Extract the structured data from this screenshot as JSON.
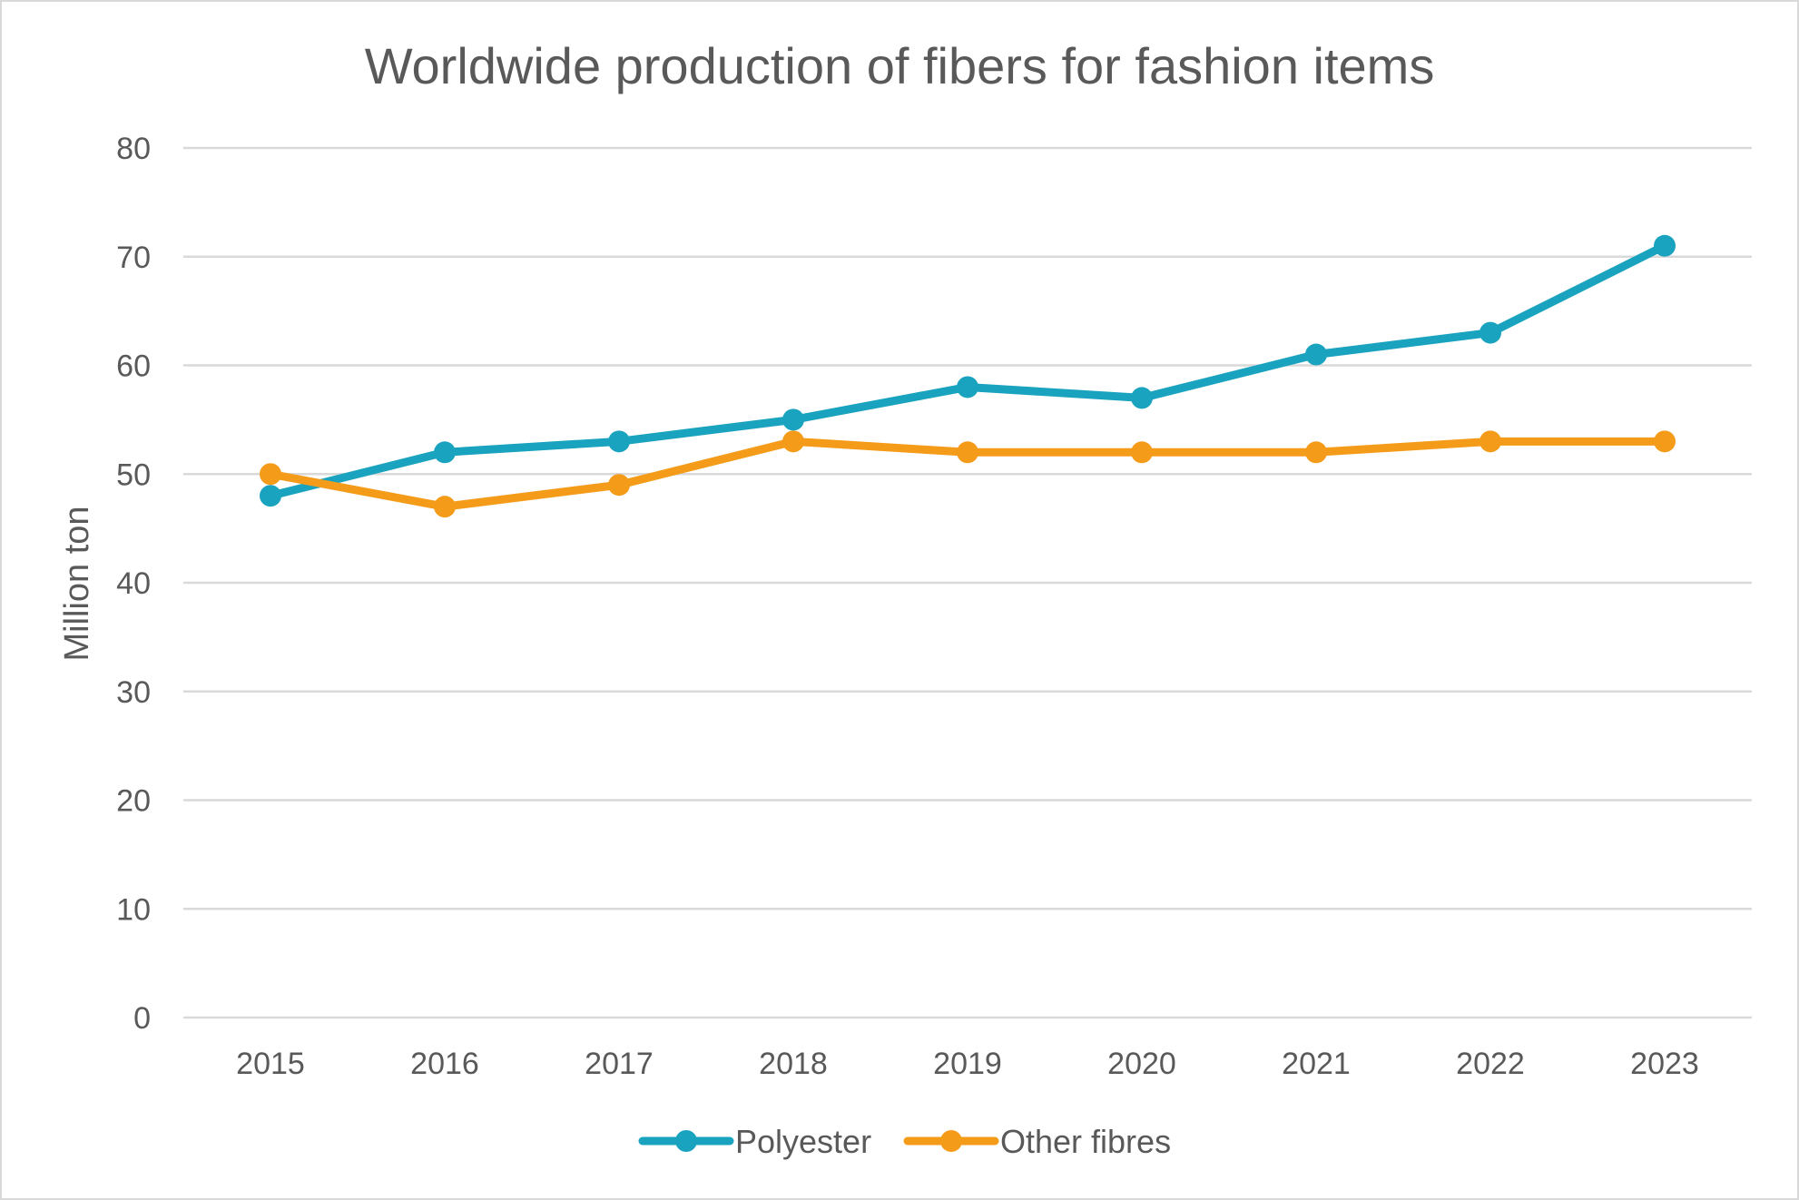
{
  "chart_data": {
    "type": "line",
    "title": "Worldwide production of fibers for fashion items",
    "ylabel": "Million ton",
    "xlabel": "",
    "categories": [
      "2015",
      "2016",
      "2017",
      "2018",
      "2019",
      "2020",
      "2021",
      "2022",
      "2023"
    ],
    "ylim": [
      0,
      80
    ],
    "yticks": [
      0,
      10,
      20,
      30,
      40,
      50,
      60,
      70,
      80
    ],
    "grid": true,
    "legend_position": "bottom",
    "series": [
      {
        "name": "Polyester",
        "color": "#1aa3bf",
        "values": [
          48,
          52,
          53,
          55,
          58,
          57,
          61,
          63,
          71
        ]
      },
      {
        "name": "Other fibres",
        "color": "#f59b1a",
        "values": [
          50,
          47,
          49,
          53,
          52,
          52,
          52,
          53,
          53
        ]
      }
    ]
  }
}
